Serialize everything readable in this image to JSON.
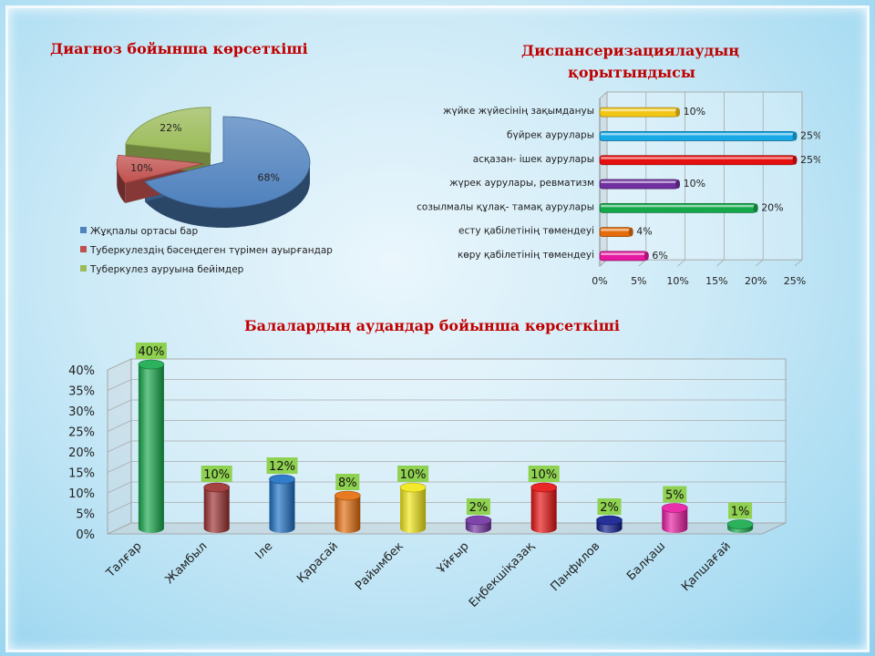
{
  "colors": {
    "title": "#c00000",
    "blue": "#4f81bd",
    "red": "#c0504d",
    "green": "#9bbb59",
    "label_bg": "#8fd150"
  },
  "chart_data": [
    {
      "type": "pie",
      "title": "Диагноз  бойынша  көрсеткіші",
      "labels": [
        "Жұқпалы  ортасы бар",
        "Туберкулездің бәсеңдеген түрімен ауырғандар",
        "Туберкулез ауруына бейімдер"
      ],
      "values": [
        68,
        10,
        22
      ],
      "data_labels": [
        "68%",
        "10%",
        "22%"
      ],
      "legend": "bottom-left"
    },
    {
      "type": "bar",
      "orientation": "horizontal",
      "title_line1": "Диспансеризациялаудың",
      "title_line2": "қорытындысы",
      "categories": [
        "жүйке жүйесінің зақымдануы",
        "бүйрек аурулары",
        "асқазан- ішек аурулары",
        "жүрек аурулары, ревматизм",
        "созылмалы құлақ- тамақ аурулары",
        "есту  қабілетінің төмендеуі",
        "көру қабілетінің төмендеуі"
      ],
      "values": [
        10,
        25,
        25,
        10,
        20,
        4,
        6
      ],
      "data_labels": [
        "10%",
        "25%",
        "25%",
        "10%",
        "20%",
        "4%",
        "6%"
      ],
      "colors": [
        "#f2c614",
        "#19a9e6",
        "#e60f0f",
        "#7030a0",
        "#14a84a",
        "#e46c0a",
        "#e619a0"
      ],
      "xlim": [
        0,
        25
      ],
      "xticks": [
        "0%",
        "5%",
        "10%",
        "15%",
        "20%",
        "25%"
      ]
    },
    {
      "type": "bar",
      "title": "Балалардың аудандар   бойынша  көрсеткіші",
      "categories": [
        "Талғар",
        "Жамбыл",
        "Іле",
        "Қарасай",
        "Райымбек",
        "Ұйғыр",
        "Еңбекшіқазақ",
        "Панфилов",
        "Балқаш",
        "Қапшағай"
      ],
      "values": [
        40,
        10,
        12,
        8,
        10,
        2,
        10,
        2,
        5,
        1
      ],
      "data_labels": [
        "40%",
        "10%",
        "12%",
        "8%",
        "10%",
        "2%",
        "10%",
        "2%",
        "5%",
        "1%"
      ],
      "colors": [
        "#14a84a",
        "#9b2d2d",
        "#1a6fc4",
        "#e46c0a",
        "#f2e614",
        "#7030a0",
        "#e60f0f",
        "#0d1a8c",
        "#e619a0",
        "#14a84a"
      ],
      "ylim": [
        0,
        40
      ],
      "yticks": [
        "0%",
        "5%",
        "10%",
        "15%",
        "20%",
        "25%",
        "30%",
        "35%",
        "40%"
      ]
    }
  ]
}
